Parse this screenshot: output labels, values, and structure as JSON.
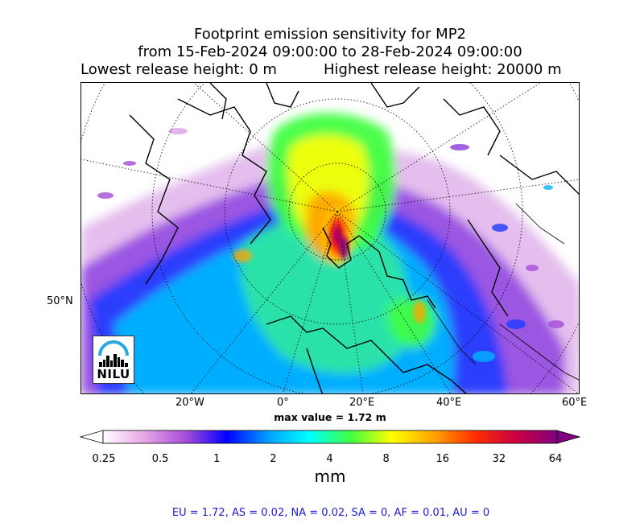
{
  "title": {
    "line1": "Footprint emission sensitivity for MP2",
    "line2": "from 15-Feb-2024 09:00:00 to 28-Feb-2024 09:00:00",
    "lowest": "Lowest release height: 0 m",
    "highest": "Highest release height: 20000 m"
  },
  "axis": {
    "lat_label": "50°N",
    "lon_labels": [
      "20°W",
      "0°",
      "20°E",
      "40°E",
      "60°E"
    ]
  },
  "max_value": "max value = 1.72 m",
  "colorbar": {
    "ticks": [
      "0.25",
      "0.5",
      "1",
      "2",
      "4",
      "8",
      "16",
      "32",
      "64"
    ],
    "unit": "mm",
    "colors": [
      "#ffffff",
      "#e6a6e6",
      "#a64dd9",
      "#0000ff",
      "#00a0ff",
      "#00ffff",
      "#40ff40",
      "#ffff00",
      "#ffa500",
      "#ff3000",
      "#cc0040",
      "#800080"
    ]
  },
  "logo": {
    "text": "NILU",
    "color": "#29a8e0"
  },
  "footer": "EU = 1.72,  AS = 0.02,  NA = 0.02,  SA = 0,  AF = 0.01,  AU = 0"
}
